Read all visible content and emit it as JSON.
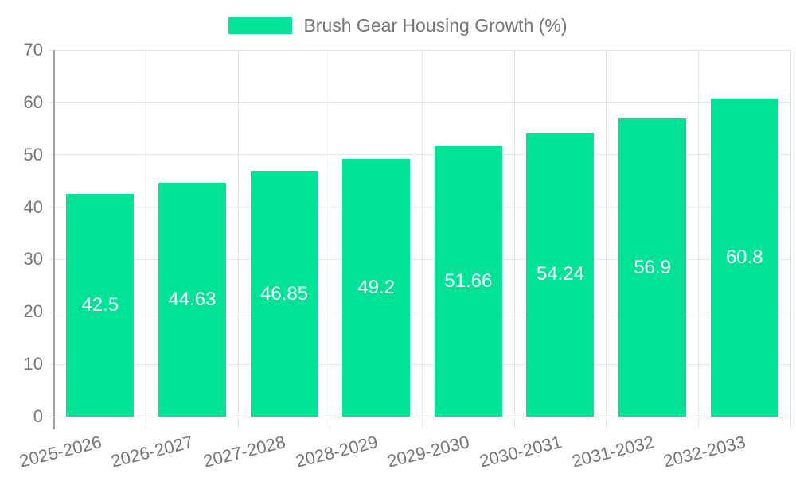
{
  "legend": {
    "label": "Brush Gear Housing Growth (%)"
  },
  "chart_data": {
    "type": "bar",
    "title": "Brush Gear Housing Growth (%)",
    "categories": [
      "2025-2026",
      "2026-2027",
      "2027-2028",
      "2028-2029",
      "2029-2030",
      "2030-2031",
      "2031-2032",
      "2032-2033"
    ],
    "values": [
      42.5,
      44.63,
      46.85,
      49.2,
      51.66,
      54.24,
      56.9,
      60.8
    ],
    "value_labels": [
      "42.5",
      "44.63",
      "46.85",
      "49.2",
      "51.66",
      "54.24",
      "56.9",
      "60.8"
    ],
    "xlabel": "",
    "ylabel": "",
    "ylim": [
      0,
      70
    ],
    "yticks": [
      0,
      10,
      20,
      30,
      40,
      50,
      60,
      70
    ],
    "grid": true,
    "legend_position": "top",
    "colors": {
      "bar": "#00E396",
      "bar_value_text": "#ffffff",
      "axis_text": "#757575",
      "gridline": "#e4e4e4",
      "x_axis_line": "#d6d6d6",
      "y_axis_line": "#a2a2a2"
    }
  }
}
